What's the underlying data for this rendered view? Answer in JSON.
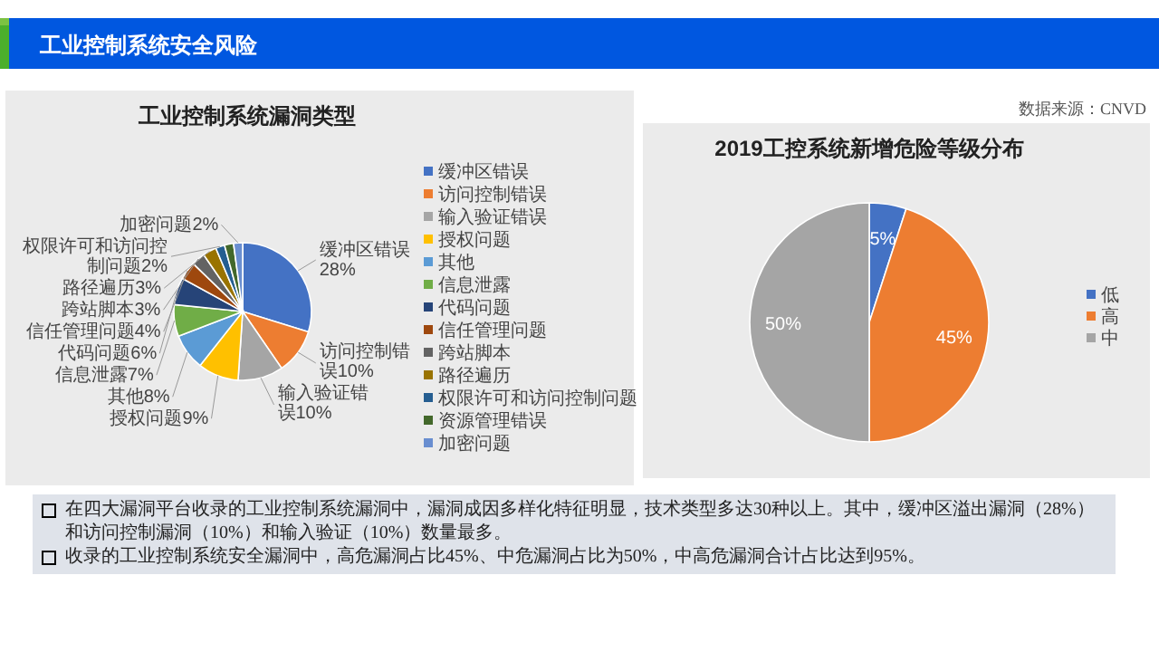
{
  "chart_data": [
    {
      "type": "other",
      "title": "工业控制系统安全风险",
      "annotations": [
        "在四大漏洞平台收录的工业控制系统漏洞中，漏洞成因多样化特征明显，技术类型多达30种以上。其中，缓冲区溢出漏洞（28%）和访问控制漏洞（10%）和输入验证（10%）数量最多。",
        "收录的工业控制系统安全漏洞中，高危漏洞占比45%、中危漏洞占比为50%，中高危漏洞合计占比达到95%。"
      ]
    },
    {
      "type": "pie",
      "title": "工业控制系统漏洞类型",
      "categories": [
        "缓冲区错误",
        "访问控制错误",
        "输入验证错误",
        "授权问题",
        "其他",
        "信息泄露",
        "代码问题",
        "信任管理问题",
        "跨站脚本",
        "路径遍历",
        "权限许可和访问控制问题",
        "资源管理错误",
        "加密问题"
      ],
      "values": [
        28,
        10,
        10,
        9,
        8,
        7,
        6,
        4,
        3,
        3,
        2,
        2,
        2
      ],
      "value_labels": [
        "28%",
        "10%",
        "10%",
        "9%",
        "8%",
        "7%",
        "6%",
        "4%",
        "3%",
        "3%",
        "2%",
        null,
        "2%"
      ],
      "colors": [
        "#4472c4",
        "#ed7d31",
        "#a5a5a5",
        "#ffc000",
        "#5b9bd5",
        "#70ad47",
        "#264478",
        "#9e480e",
        "#636363",
        "#997300",
        "#255e91",
        "#43682b",
        "#698ed0"
      ],
      "legend": "right"
    },
    {
      "type": "pie",
      "title": "2019工控系统新增危险等级分布",
      "categories": [
        "低",
        "高",
        "中"
      ],
      "values": [
        5,
        45,
        50
      ],
      "value_labels": [
        "5%",
        "45%",
        "50%"
      ],
      "colors": [
        "#4472c4",
        "#ed7d31",
        "#a5a5a5"
      ],
      "legend": "right",
      "annotations": [
        "数据来源：CNVD"
      ]
    }
  ]
}
